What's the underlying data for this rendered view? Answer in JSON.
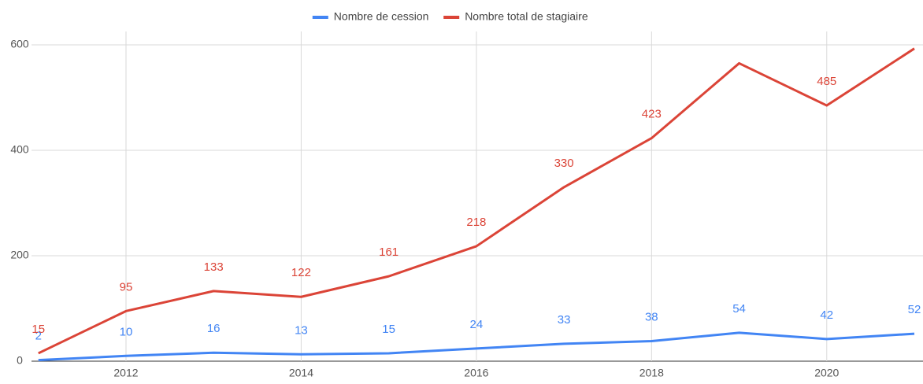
{
  "chart_data": {
    "type": "line",
    "x": [
      2011,
      2012,
      2013,
      2014,
      2015,
      2016,
      2017,
      2018,
      2019,
      2020,
      2021
    ],
    "series": [
      {
        "name": "Nombre de cession",
        "color": "#4285f4",
        "values": [
          2,
          10,
          16,
          13,
          15,
          24,
          33,
          38,
          54,
          42,
          52
        ]
      },
      {
        "name": "Nombre total de stagiaire",
        "color": "#db4437",
        "values": [
          15,
          95,
          133,
          122,
          161,
          218,
          330,
          423,
          565,
          485,
          593
        ],
        "value_labels": [
          "15",
          "95",
          "133",
          "122",
          "161",
          "218",
          "330",
          "423",
          null,
          "485",
          null
        ]
      }
    ],
    "xlim": [
      2011,
      2021
    ],
    "xticks": [
      2012,
      2014,
      2016,
      2018,
      2020
    ],
    "ylim": [
      0,
      600
    ],
    "yticks": [
      0,
      200,
      400,
      600
    ],
    "grid": true,
    "legend": "top"
  }
}
